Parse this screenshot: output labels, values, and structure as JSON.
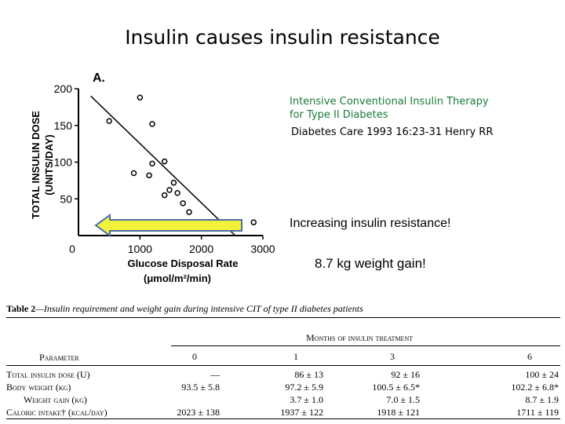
{
  "slide_title": "Insulin causes insulin resistance",
  "reference": {
    "title": "Intensive Conventional Insulin Therapy for Type II Diabetes",
    "citation": "Diabetes Care 1993 16:23-31 Henry  RR"
  },
  "arrow_label": "Increasing insulin resistance!",
  "weight_label": "8.7 kg weight gain!",
  "colors": {
    "title_green": "#1a7a3a",
    "arrow_fill": "#f2f23a",
    "arrow_stroke": "#4a6fa5"
  },
  "chart_data": {
    "type": "scatter",
    "panel_label": "A.",
    "xlabel": "Glucose Disposal Rate",
    "xunit": "(μmol/m²/min)",
    "ylabel": "TOTAL INSULIN DOSE",
    "yunit": "(UNITS/DAY)",
    "xlim": [
      0,
      3000
    ],
    "ylim": [
      0,
      200
    ],
    "xticks": [
      "0",
      "1000",
      "2000",
      "3000"
    ],
    "yticks": [
      "50",
      "100",
      "150",
      "200"
    ],
    "points": [
      {
        "x": 500,
        "y": 156
      },
      {
        "x": 1000,
        "y": 188
      },
      {
        "x": 1200,
        "y": 152
      },
      {
        "x": 1200,
        "y": 98
      },
      {
        "x": 1400,
        "y": 101
      },
      {
        "x": 900,
        "y": 85
      },
      {
        "x": 1150,
        "y": 82
      },
      {
        "x": 1550,
        "y": 72
      },
      {
        "x": 1480,
        "y": 62
      },
      {
        "x": 1400,
        "y": 55
      },
      {
        "x": 1610,
        "y": 58
      },
      {
        "x": 1700,
        "y": 44
      },
      {
        "x": 1800,
        "y": 32
      },
      {
        "x": 2850,
        "y": 18
      }
    ],
    "fit_line": [
      {
        "x": 200,
        "y": 190
      },
      {
        "x": 2550,
        "y": 0
      }
    ],
    "grid": false
  },
  "table": {
    "caption_label": "Table  2",
    "caption_text": "—Insulin requirement and weight gain during intensive CIT of type II diabetes patients",
    "group_header": "Months of insulin treatment",
    "param_header": "Parameter",
    "columns": [
      "0",
      "1",
      "3",
      "6"
    ],
    "rows": [
      {
        "label": "Total insulin dose (U)",
        "values": [
          "—",
          "86 ± 13",
          "92 ± 16",
          "100 ± 24"
        ]
      },
      {
        "label": "Body weight (kg)",
        "values": [
          "93.5 ± 5.8",
          "97.2 ± 5.9",
          "100.5 ± 6.5*",
          "102.2 ± 6.8*"
        ]
      },
      {
        "label": "Weight gain (kg)",
        "values": [
          "",
          "3.7 ± 1.0",
          "7.0 ± 1.5",
          "8.7 ± 1.9"
        ]
      },
      {
        "label": "Caloric intake† (kcal/day)",
        "values": [
          "2023 ± 138",
          "1937 ± 122",
          "1918 ± 121",
          "1711 ± 119"
        ]
      }
    ]
  }
}
